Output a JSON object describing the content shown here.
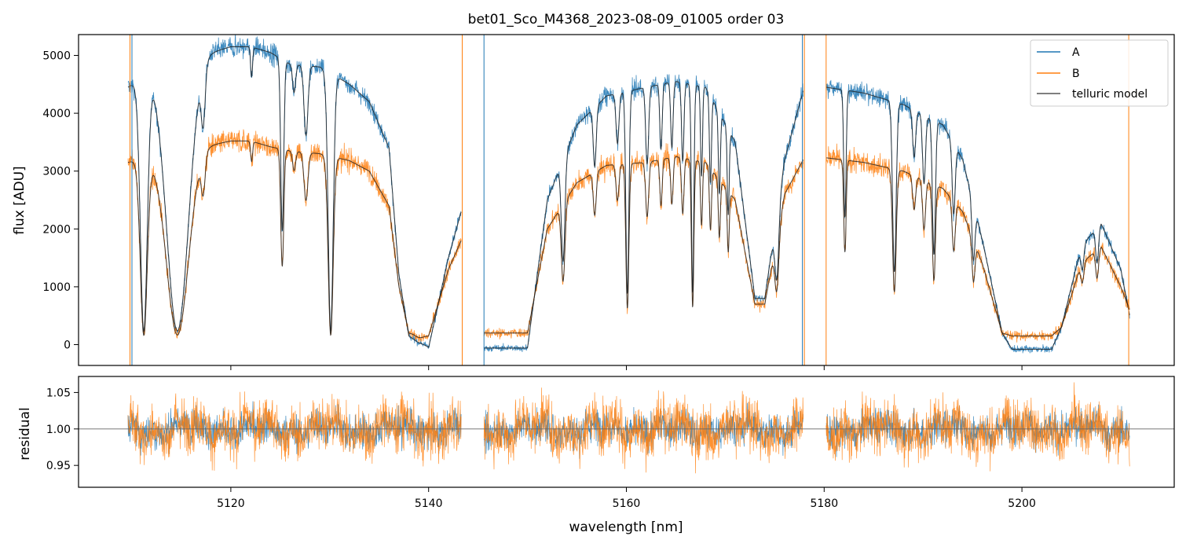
{
  "chart_data": [
    {
      "type": "line",
      "title": "bet01_Sco_M4368_2023-08-09_01005  order 03",
      "xlabel": "",
      "ylabel": "flux [ADU]",
      "xlim": [
        5104.6,
        5215.4
      ],
      "ylim": [
        -360,
        5360
      ],
      "yticks": [
        0,
        1000,
        2000,
        3000,
        4000,
        5000
      ],
      "ytick_labels": [
        "0",
        "1000",
        "2000",
        "3000",
        "4000",
        "5000"
      ],
      "xticks": [
        5120,
        5140,
        5160,
        5180,
        5200
      ],
      "legend_position": "top-right",
      "series": [
        {
          "name": "A",
          "color": "#1f77b4"
        },
        {
          "name": "B",
          "color": "#ff7f0e"
        },
        {
          "name": "telluric model",
          "color": "#555555"
        }
      ],
      "segments": [
        [
          5109.6,
          5143.3
        ],
        [
          5145.6,
          5177.9
        ],
        [
          5180.2,
          5210.9
        ]
      ],
      "continuum_A": [
        [
          5109.6,
          4450
        ],
        [
          5112,
          4700
        ],
        [
          5116,
          4850
        ],
        [
          5118,
          5050
        ],
        [
          5120,
          5150
        ],
        [
          5122,
          5150
        ],
        [
          5124,
          5050
        ],
        [
          5126,
          4850
        ],
        [
          5129,
          4800
        ],
        [
          5132,
          4500
        ],
        [
          5134,
          4200
        ],
        [
          5136,
          3400
        ],
        [
          5137,
          1200
        ],
        [
          5138,
          150
        ],
        [
          5140,
          -50
        ],
        [
          5142,
          1500
        ],
        [
          5143.3,
          2300
        ],
        [
          5145.6,
          -60
        ],
        [
          5150,
          -60
        ],
        [
          5152,
          2500
        ],
        [
          5155,
          3800
        ],
        [
          5158,
          4300
        ],
        [
          5162,
          4450
        ],
        [
          5165,
          4550
        ],
        [
          5168,
          4450
        ],
        [
          5171,
          3500
        ],
        [
          5173,
          800
        ],
        [
          5174,
          800
        ],
        [
          5176,
          3200
        ],
        [
          5177.9,
          4400
        ],
        [
          5180.2,
          4450
        ],
        [
          5184,
          4350
        ],
        [
          5188,
          4150
        ],
        [
          5192,
          3800
        ],
        [
          5194,
          3200
        ],
        [
          5196,
          1800
        ],
        [
          5198,
          200
        ],
        [
          5199,
          -80
        ],
        [
          5203,
          -80
        ],
        [
          5204,
          300
        ],
        [
          5206,
          1700
        ],
        [
          5208,
          2100
        ],
        [
          5210,
          1300
        ],
        [
          5210.9,
          500
        ]
      ],
      "continuum_B": [
        [
          5109.6,
          3150
        ],
        [
          5112,
          3250
        ],
        [
          5116,
          3350
        ],
        [
          5118,
          3450
        ],
        [
          5120,
          3520
        ],
        [
          5122,
          3520
        ],
        [
          5124,
          3420
        ],
        [
          5126,
          3350
        ],
        [
          5129,
          3300
        ],
        [
          5132,
          3180
        ],
        [
          5134,
          3000
        ],
        [
          5136,
          2400
        ],
        [
          5137,
          1000
        ],
        [
          5138,
          200
        ],
        [
          5140,
          150
        ],
        [
          5142,
          1300
        ],
        [
          5143.3,
          1800
        ],
        [
          5145.6,
          200
        ],
        [
          5150,
          200
        ],
        [
          5152,
          2000
        ],
        [
          5155,
          2800
        ],
        [
          5158,
          3100
        ],
        [
          5162,
          3150
        ],
        [
          5165,
          3250
        ],
        [
          5168,
          3150
        ],
        [
          5171,
          2500
        ],
        [
          5173,
          700
        ],
        [
          5174,
          700
        ],
        [
          5176,
          2600
        ],
        [
          5177.9,
          3200
        ],
        [
          5180.2,
          3230
        ],
        [
          5184,
          3150
        ],
        [
          5188,
          3000
        ],
        [
          5192,
          2700
        ],
        [
          5194,
          2300
        ],
        [
          5196,
          1400
        ],
        [
          5198,
          200
        ],
        [
          5199,
          150
        ],
        [
          5203,
          150
        ],
        [
          5204,
          300
        ],
        [
          5206,
          1400
        ],
        [
          5208,
          1700
        ],
        [
          5210,
          1000
        ],
        [
          5210.9,
          600
        ]
      ],
      "absorption_lines": [
        [
          5111.2,
          0.95,
          0.35
        ],
        [
          5114.6,
          0.95,
          1.1
        ],
        [
          5117.2,
          0.2,
          0.2
        ],
        [
          5122.1,
          0.1,
          0.1
        ],
        [
          5125.2,
          0.6,
          0.15
        ],
        [
          5126.4,
          0.1,
          0.15
        ],
        [
          5127.6,
          0.25,
          0.2
        ],
        [
          5130.1,
          0.95,
          0.25
        ],
        [
          5139.1,
          0.3,
          0.4
        ],
        [
          5153.6,
          0.55,
          0.18
        ],
        [
          5156.8,
          0.25,
          0.15
        ],
        [
          5159.1,
          0.2,
          0.15
        ],
        [
          5160.1,
          0.8,
          0.15
        ],
        [
          5162.1,
          0.3,
          0.15
        ],
        [
          5163.5,
          0.25,
          0.12
        ],
        [
          5164.6,
          0.25,
          0.12
        ],
        [
          5165.7,
          0.3,
          0.12
        ],
        [
          5166.7,
          0.8,
          0.12
        ],
        [
          5167.6,
          0.35,
          0.1
        ],
        [
          5168.5,
          0.35,
          0.1
        ],
        [
          5169.4,
          0.35,
          0.1
        ],
        [
          5170.3,
          0.4,
          0.1
        ],
        [
          5175.2,
          0.5,
          0.2
        ],
        [
          5182.1,
          0.5,
          0.12
        ],
        [
          5187.1,
          0.7,
          0.18
        ],
        [
          5189.1,
          0.2,
          0.15
        ],
        [
          5190.1,
          0.3,
          0.15
        ],
        [
          5191.1,
          0.6,
          0.15
        ],
        [
          5193.1,
          0.35,
          0.15
        ],
        [
          5195.1,
          0.4,
          0.15
        ],
        [
          5206.1,
          0.25,
          0.15
        ],
        [
          5207.6,
          0.3,
          0.15
        ]
      ]
    },
    {
      "type": "line",
      "title": "",
      "xlabel": "wavelength [nm]",
      "ylabel": "residual",
      "xlim": [
        5104.6,
        5215.4
      ],
      "ylim": [
        0.92,
        1.072
      ],
      "yticks": [
        0.95,
        1.0,
        1.05
      ],
      "ytick_labels": [
        "0.95",
        "1.00",
        "1.05"
      ],
      "xticks": [
        5120,
        5140,
        5160,
        5180,
        5200
      ],
      "xtick_labels": [
        "5120",
        "5140",
        "5160",
        "5180",
        "5200"
      ],
      "reference_line": 1.0,
      "series": [
        {
          "name": "A",
          "color": "#1f77b4"
        },
        {
          "name": "B",
          "color": "#ff7f0e"
        }
      ]
    }
  ]
}
